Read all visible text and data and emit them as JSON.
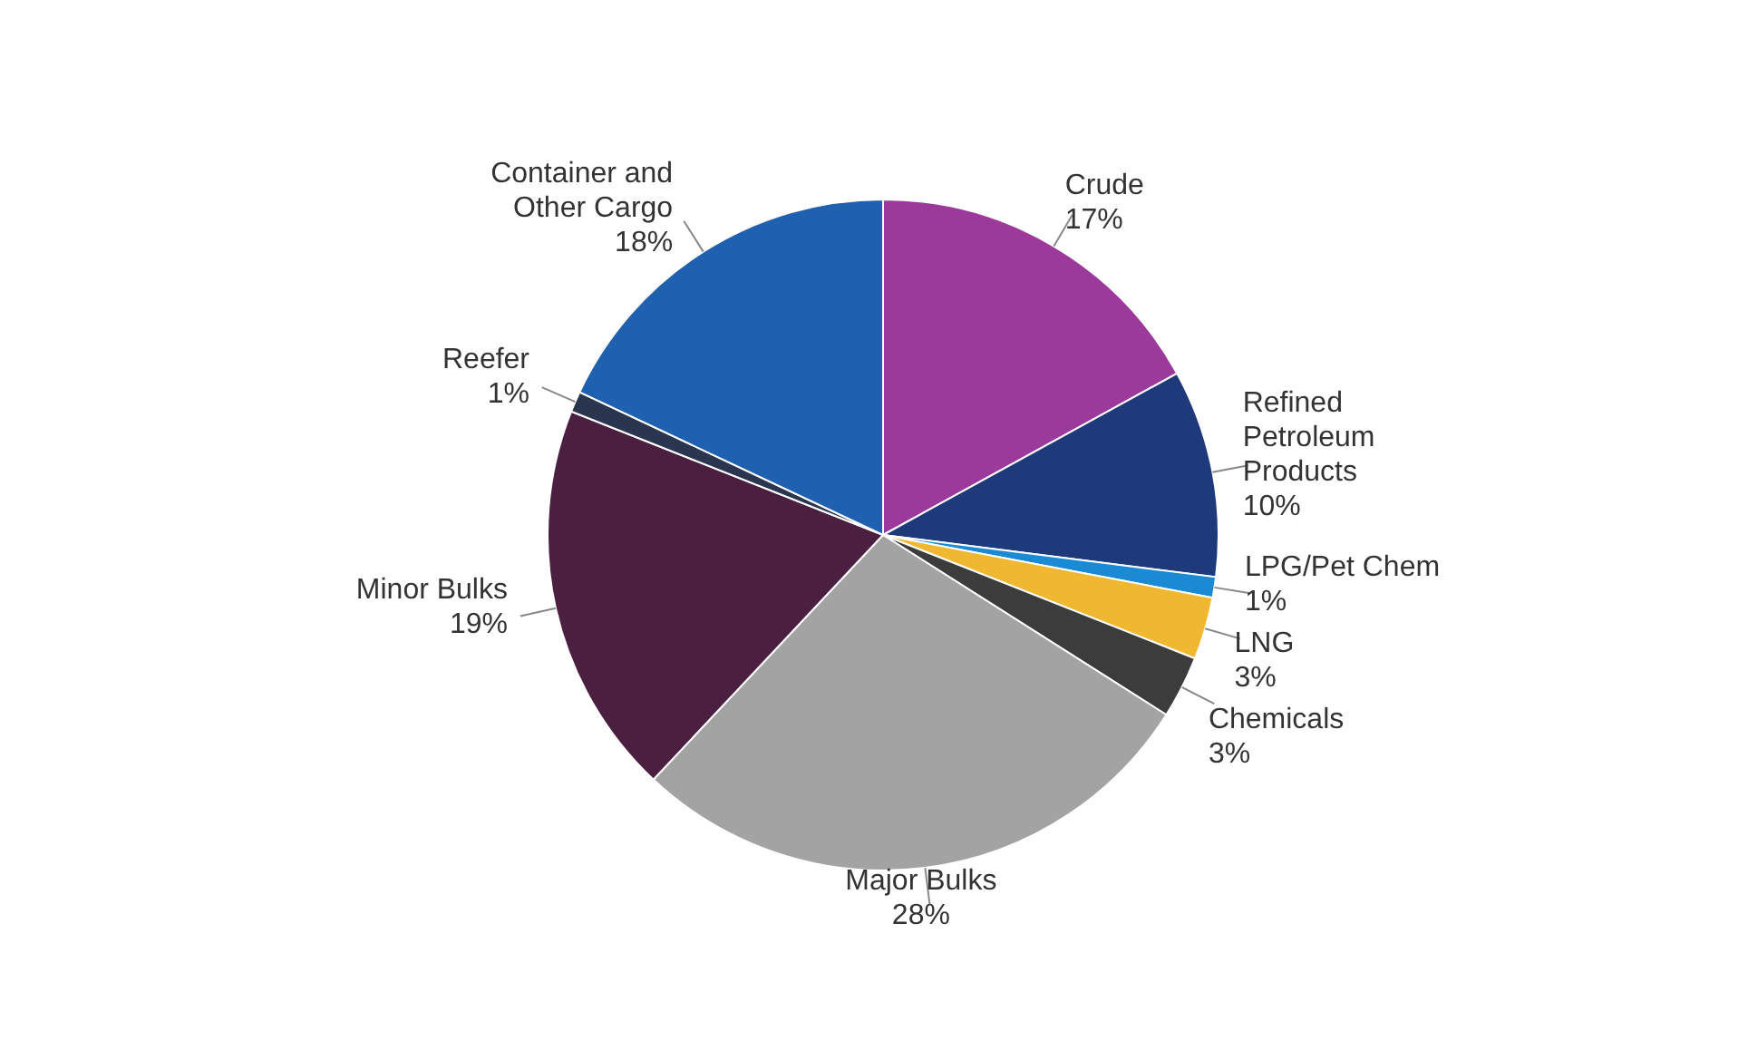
{
  "chart_data": {
    "type": "pie",
    "categories": [
      "Crude",
      "Refined Petroleum Products",
      "LPG/Pet Chem",
      "LNG",
      "Chemicals",
      "Major Bulks",
      "Minor Bulks",
      "Reefer",
      "Container and Other Cargo"
    ],
    "values": [
      17,
      10,
      1,
      3,
      3,
      28,
      19,
      1,
      18
    ],
    "value_labels": [
      "17%",
      "10%",
      "1%",
      "3%",
      "3%",
      "28%",
      "19%",
      "1%",
      "18%"
    ],
    "colors": [
      "#9b3a9b",
      "#1f3a7a",
      "#1a8ad4",
      "#f0b830",
      "#3c3c3c",
      "#a3a3a3",
      "#4a1f40",
      "#2a3550",
      "#2060b0"
    ]
  }
}
